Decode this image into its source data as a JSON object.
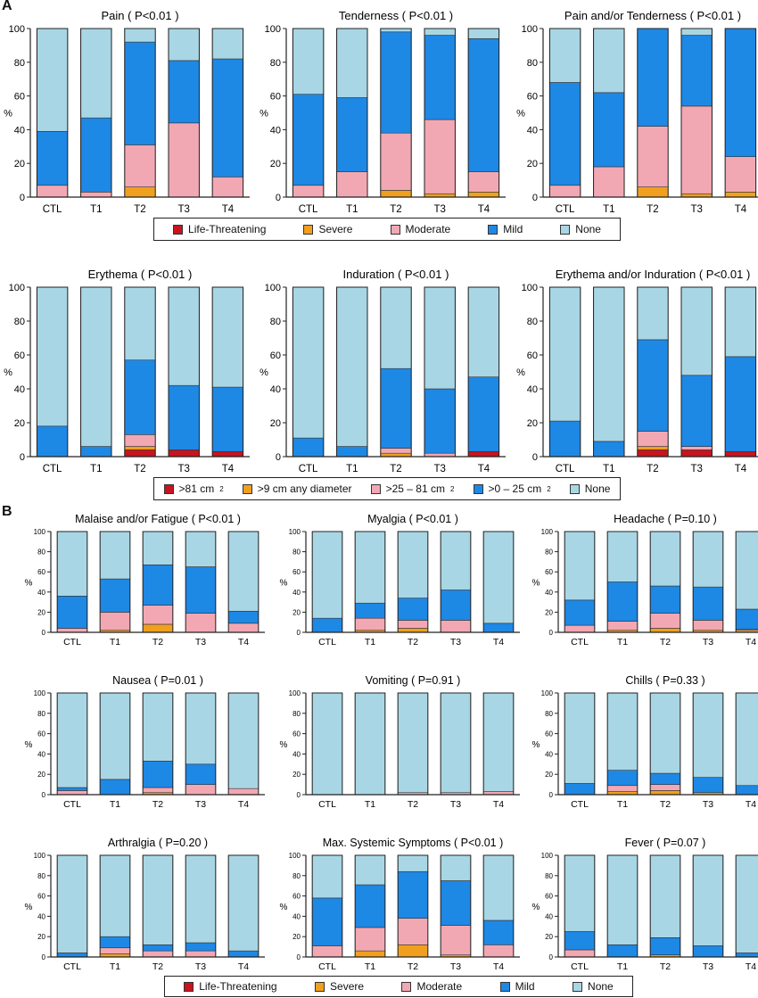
{
  "panels": {
    "a": "A",
    "b": "B"
  },
  "colors": {
    "life": "#c8141e",
    "severe": "#f0a01e",
    "moderate": "#f2a8b3",
    "mild": "#1e88e5",
    "none": "#a9d6e5"
  },
  "legend_a1": {
    "items": [
      {
        "key": "life",
        "label": "Life-Threatening"
      },
      {
        "key": "severe",
        "label": "Severe"
      },
      {
        "key": "moderate",
        "label": "Moderate"
      },
      {
        "key": "mild",
        "label": "Mild"
      },
      {
        "key": "none",
        "label": "None"
      }
    ]
  },
  "legend_a2": {
    "items": [
      {
        "key": "life",
        "label": ">81 cm",
        "sup": "2"
      },
      {
        "key": "severe",
        "label": ">9 cm any diameter"
      },
      {
        "key": "moderate",
        "label": ">25 – 81 cm",
        "sup": "2"
      },
      {
        "key": "mild",
        "label": ">0 – 25 cm",
        "sup": "2"
      },
      {
        "key": "none",
        "label": "None"
      }
    ]
  },
  "legend_b": {
    "items": [
      {
        "key": "life",
        "label": "Life-Threatening"
      },
      {
        "key": "severe",
        "label": "Severe"
      },
      {
        "key": "moderate",
        "label": "Moderate"
      },
      {
        "key": "mild",
        "label": "Mild"
      },
      {
        "key": "none",
        "label": "None"
      }
    ]
  },
  "chart_data": [
    {
      "type": "bar",
      "stacked": true,
      "title": "Pain ( P<0.01 )",
      "ylabel": "%",
      "ylim": [
        0,
        100
      ],
      "yticks": [
        0,
        20,
        40,
        60,
        80,
        100
      ],
      "categories": [
        "CTL",
        "T1",
        "T2",
        "T3",
        "T4"
      ],
      "series": [
        {
          "name": "Life-Threatening",
          "values": [
            0,
            0,
            0,
            0,
            0
          ]
        },
        {
          "name": "Severe",
          "values": [
            0,
            0,
            6,
            0,
            0
          ]
        },
        {
          "name": "Moderate",
          "values": [
            7,
            3,
            25,
            44,
            12
          ]
        },
        {
          "name": "Mild",
          "values": [
            32,
            44,
            61,
            37,
            70
          ]
        },
        {
          "name": "None",
          "values": [
            61,
            53,
            8,
            19,
            18
          ]
        }
      ]
    },
    {
      "type": "bar",
      "stacked": true,
      "title": "Tenderness ( P<0.01 )",
      "ylabel": "%",
      "ylim": [
        0,
        100
      ],
      "yticks": [
        0,
        20,
        40,
        60,
        80,
        100
      ],
      "categories": [
        "CTL",
        "T1",
        "T2",
        "T3",
        "T4"
      ],
      "series": [
        {
          "name": "Life-Threatening",
          "values": [
            0,
            0,
            0,
            0,
            0
          ]
        },
        {
          "name": "Severe",
          "values": [
            0,
            0,
            4,
            2,
            3
          ]
        },
        {
          "name": "Moderate",
          "values": [
            7,
            15,
            34,
            44,
            12
          ]
        },
        {
          "name": "Mild",
          "values": [
            54,
            44,
            60,
            50,
            79
          ]
        },
        {
          "name": "None",
          "values": [
            39,
            41,
            2,
            4,
            6
          ]
        }
      ]
    },
    {
      "type": "bar",
      "stacked": true,
      "title": "Pain and/or Tenderness ( P<0.01 )",
      "ylabel": "%",
      "ylim": [
        0,
        100
      ],
      "yticks": [
        0,
        20,
        40,
        60,
        80,
        100
      ],
      "categories": [
        "CTL",
        "T1",
        "T2",
        "T3",
        "T4"
      ],
      "series": [
        {
          "name": "Life-Threatening",
          "values": [
            0,
            0,
            0,
            0,
            0
          ]
        },
        {
          "name": "Severe",
          "values": [
            0,
            0,
            6,
            2,
            3
          ]
        },
        {
          "name": "Moderate",
          "values": [
            7,
            18,
            36,
            52,
            21
          ]
        },
        {
          "name": "Mild",
          "values": [
            61,
            44,
            58,
            42,
            76
          ]
        },
        {
          "name": "None",
          "values": [
            32,
            38,
            0,
            4,
            0
          ]
        }
      ]
    },
    {
      "type": "bar",
      "stacked": true,
      "title": "Erythema ( P<0.01 )",
      "ylabel": "%",
      "ylim": [
        0,
        100
      ],
      "yticks": [
        0,
        20,
        40,
        60,
        80,
        100
      ],
      "categories": [
        "CTL",
        "T1",
        "T2",
        "T3",
        "T4"
      ],
      "series": [
        {
          "name": ">81 cm2",
          "values": [
            0,
            0,
            4,
            4,
            3
          ]
        },
        {
          "name": ">9 cm any diameter",
          "values": [
            0,
            0,
            2,
            0,
            0
          ]
        },
        {
          "name": ">25 – 81 cm2",
          "values": [
            0,
            0,
            7,
            0,
            0
          ]
        },
        {
          "name": ">0 – 25 cm2",
          "values": [
            18,
            6,
            44,
            38,
            38
          ]
        },
        {
          "name": "None",
          "values": [
            82,
            94,
            43,
            58,
            59
          ]
        }
      ]
    },
    {
      "type": "bar",
      "stacked": true,
      "title": "Induration ( P<0.01 )",
      "ylabel": "%",
      "ylim": [
        0,
        100
      ],
      "yticks": [
        0,
        20,
        40,
        60,
        80,
        100
      ],
      "categories": [
        "CTL",
        "T1",
        "T2",
        "T3",
        "T4"
      ],
      "series": [
        {
          "name": ">81 cm2",
          "values": [
            0,
            0,
            0,
            0,
            3
          ]
        },
        {
          "name": ">9 cm any diameter",
          "values": [
            0,
            0,
            2,
            0,
            0
          ]
        },
        {
          "name": ">25 – 81 cm2",
          "values": [
            0,
            0,
            3,
            2,
            0
          ]
        },
        {
          "name": ">0 – 25 cm2",
          "values": [
            11,
            6,
            47,
            38,
            44
          ]
        },
        {
          "name": "None",
          "values": [
            89,
            94,
            48,
            60,
            53
          ]
        }
      ]
    },
    {
      "type": "bar",
      "stacked": true,
      "title": "Erythema and/or Induration ( P<0.01 )",
      "ylabel": "%",
      "ylim": [
        0,
        100
      ],
      "yticks": [
        0,
        20,
        40,
        60,
        80,
        100
      ],
      "categories": [
        "CTL",
        "T1",
        "T2",
        "T3",
        "T4"
      ],
      "series": [
        {
          "name": ">81 cm2",
          "values": [
            0,
            0,
            4,
            4,
            3
          ]
        },
        {
          "name": ">9 cm any diameter",
          "values": [
            0,
            0,
            2,
            0,
            0
          ]
        },
        {
          "name": ">25 – 81 cm2",
          "values": [
            0,
            0,
            9,
            2,
            0
          ]
        },
        {
          "name": ">0 – 25 cm2",
          "values": [
            21,
            9,
            54,
            42,
            56
          ]
        },
        {
          "name": "None",
          "values": [
            79,
            91,
            31,
            52,
            41
          ]
        }
      ]
    },
    {
      "type": "bar",
      "stacked": true,
      "title": "Malaise and/or Fatigue ( P<0.01 )",
      "ylabel": "%",
      "ylim": [
        0,
        100
      ],
      "yticks": [
        0,
        20,
        40,
        60,
        80,
        100
      ],
      "categories": [
        "CTL",
        "T1",
        "T2",
        "T3",
        "T4"
      ],
      "series": [
        {
          "name": "Life-Threatening",
          "values": [
            0,
            0,
            0,
            0,
            0
          ]
        },
        {
          "name": "Severe",
          "values": [
            0,
            2,
            8,
            0,
            0
          ]
        },
        {
          "name": "Moderate",
          "values": [
            4,
            18,
            19,
            19,
            9
          ]
        },
        {
          "name": "Mild",
          "values": [
            32,
            33,
            40,
            46,
            12
          ]
        },
        {
          "name": "None",
          "values": [
            64,
            47,
            33,
            35,
            79
          ]
        }
      ]
    },
    {
      "type": "bar",
      "stacked": true,
      "title": "Myalgia ( P<0.01 )",
      "ylabel": "%",
      "ylim": [
        0,
        100
      ],
      "yticks": [
        0,
        20,
        40,
        60,
        80,
        100
      ],
      "categories": [
        "CTL",
        "T1",
        "T2",
        "T3",
        "T4"
      ],
      "series": [
        {
          "name": "Life-Threatening",
          "values": [
            0,
            0,
            0,
            0,
            0
          ]
        },
        {
          "name": "Severe",
          "values": [
            0,
            2,
            4,
            0,
            0
          ]
        },
        {
          "name": "Moderate",
          "values": [
            0,
            12,
            8,
            12,
            0
          ]
        },
        {
          "name": "Mild",
          "values": [
            14,
            15,
            22,
            30,
            9
          ]
        },
        {
          "name": "None",
          "values": [
            86,
            71,
            66,
            58,
            91
          ]
        }
      ]
    },
    {
      "type": "bar",
      "stacked": true,
      "title": "Headache ( P=0.10 )",
      "ylabel": "%",
      "ylim": [
        0,
        100
      ],
      "yticks": [
        0,
        20,
        40,
        60,
        80,
        100
      ],
      "categories": [
        "CTL",
        "T1",
        "T2",
        "T3",
        "T4"
      ],
      "series": [
        {
          "name": "Life-Threatening",
          "values": [
            0,
            0,
            0,
            0,
            0
          ]
        },
        {
          "name": "Severe",
          "values": [
            0,
            2,
            4,
            2,
            2
          ]
        },
        {
          "name": "Moderate",
          "values": [
            7,
            9,
            15,
            10,
            1
          ]
        },
        {
          "name": "Mild",
          "values": [
            25,
            39,
            27,
            33,
            20
          ]
        },
        {
          "name": "None",
          "values": [
            68,
            50,
            54,
            55,
            77
          ]
        }
      ]
    },
    {
      "type": "bar",
      "stacked": true,
      "title": "Nausea ( P=0.01 )",
      "ylabel": "%",
      "ylim": [
        0,
        100
      ],
      "yticks": [
        0,
        20,
        40,
        60,
        80,
        100
      ],
      "categories": [
        "CTL",
        "T1",
        "T2",
        "T3",
        "T4"
      ],
      "series": [
        {
          "name": "Life-Threatening",
          "values": [
            0,
            0,
            0,
            0,
            0
          ]
        },
        {
          "name": "Severe",
          "values": [
            0,
            0,
            2,
            0,
            0
          ]
        },
        {
          "name": "Moderate",
          "values": [
            4,
            0,
            5,
            10,
            6
          ]
        },
        {
          "name": "Mild",
          "values": [
            3,
            15,
            26,
            20,
            0
          ]
        },
        {
          "name": "None",
          "values": [
            93,
            85,
            67,
            70,
            94
          ]
        }
      ]
    },
    {
      "type": "bar",
      "stacked": true,
      "title": "Vomiting ( P=0.91 )",
      "ylabel": "%",
      "ylim": [
        0,
        100
      ],
      "yticks": [
        0,
        20,
        40,
        60,
        80,
        100
      ],
      "categories": [
        "CTL",
        "T1",
        "T2",
        "T3",
        "T4"
      ],
      "series": [
        {
          "name": "Life-Threatening",
          "values": [
            0,
            0,
            0,
            0,
            0
          ]
        },
        {
          "name": "Severe",
          "values": [
            0,
            0,
            0,
            0,
            0
          ]
        },
        {
          "name": "Moderate",
          "values": [
            0,
            0,
            2,
            2,
            3
          ]
        },
        {
          "name": "Mild",
          "values": [
            0,
            0,
            0,
            0,
            0
          ]
        },
        {
          "name": "None",
          "values": [
            100,
            100,
            98,
            98,
            97
          ]
        }
      ]
    },
    {
      "type": "bar",
      "stacked": true,
      "title": "Chills ( P=0.33 )",
      "ylabel": "%",
      "ylim": [
        0,
        100
      ],
      "yticks": [
        0,
        20,
        40,
        60,
        80,
        100
      ],
      "categories": [
        "CTL",
        "T1",
        "T2",
        "T3",
        "T4"
      ],
      "series": [
        {
          "name": "Life-Threatening",
          "values": [
            0,
            0,
            0,
            0,
            0
          ]
        },
        {
          "name": "Severe",
          "values": [
            0,
            3,
            4,
            2,
            0
          ]
        },
        {
          "name": "Moderate",
          "values": [
            0,
            6,
            6,
            0,
            0
          ]
        },
        {
          "name": "Mild",
          "values": [
            11,
            15,
            11,
            15,
            9
          ]
        },
        {
          "name": "None",
          "values": [
            89,
            76,
            79,
            83,
            91
          ]
        }
      ]
    },
    {
      "type": "bar",
      "stacked": true,
      "title": "Arthralgia ( P=0.20 )",
      "ylabel": "%",
      "ylim": [
        0,
        100
      ],
      "yticks": [
        0,
        20,
        40,
        60,
        80,
        100
      ],
      "categories": [
        "CTL",
        "T1",
        "T2",
        "T3",
        "T4"
      ],
      "series": [
        {
          "name": "Life-Threatening",
          "values": [
            0,
            0,
            0,
            0,
            0
          ]
        },
        {
          "name": "Severe",
          "values": [
            0,
            3,
            0,
            0,
            0
          ]
        },
        {
          "name": "Moderate",
          "values": [
            0,
            6,
            6,
            6,
            0
          ]
        },
        {
          "name": "Mild",
          "values": [
            4,
            11,
            6,
            8,
            6
          ]
        },
        {
          "name": "None",
          "values": [
            96,
            80,
            88,
            86,
            94
          ]
        }
      ]
    },
    {
      "type": "bar",
      "stacked": true,
      "title": "Max. Systemic Symptoms ( P<0.01 )",
      "ylabel": "%",
      "ylim": [
        0,
        100
      ],
      "yticks": [
        0,
        20,
        40,
        60,
        80,
        100
      ],
      "categories": [
        "CTL",
        "T1",
        "T2",
        "T3",
        "T4"
      ],
      "series": [
        {
          "name": "Life-Threatening",
          "values": [
            0,
            0,
            0,
            0,
            0
          ]
        },
        {
          "name": "Severe",
          "values": [
            0,
            6,
            12,
            2,
            0
          ]
        },
        {
          "name": "Moderate",
          "values": [
            11,
            23,
            26,
            29,
            12
          ]
        },
        {
          "name": "Mild",
          "values": [
            47,
            42,
            46,
            44,
            24
          ]
        },
        {
          "name": "None",
          "values": [
            42,
            29,
            16,
            25,
            64
          ]
        }
      ]
    },
    {
      "type": "bar",
      "stacked": true,
      "title": "Fever ( P=0.07 )",
      "ylabel": "%",
      "ylim": [
        0,
        100
      ],
      "yticks": [
        0,
        20,
        40,
        60,
        80,
        100
      ],
      "categories": [
        "CTL",
        "T1",
        "T2",
        "T3",
        "T4"
      ],
      "series": [
        {
          "name": "Life-Threatening",
          "values": [
            0,
            0,
            0,
            0,
            0
          ]
        },
        {
          "name": "Severe",
          "values": [
            0,
            0,
            2,
            0,
            0
          ]
        },
        {
          "name": "Moderate",
          "values": [
            7,
            0,
            0,
            0,
            0
          ]
        },
        {
          "name": "Mild",
          "values": [
            18,
            12,
            17,
            11,
            4
          ]
        },
        {
          "name": "None",
          "values": [
            75,
            88,
            81,
            89,
            96
          ]
        }
      ]
    }
  ]
}
